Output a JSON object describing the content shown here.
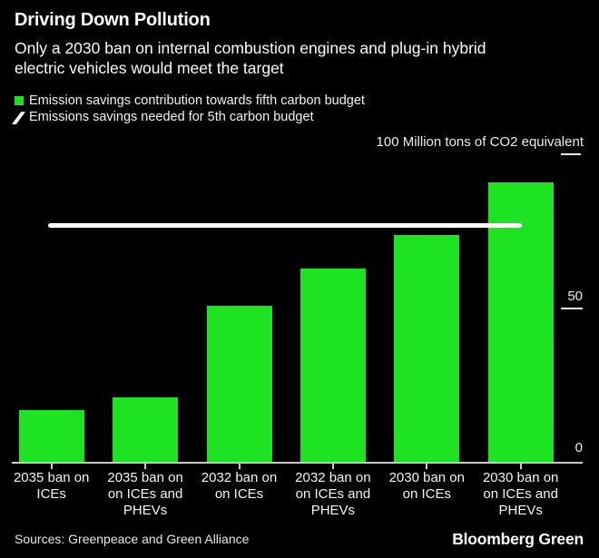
{
  "header": {
    "title": "Driving Down Pollution",
    "subtitle_line1": "Only a 2030 ban on internal combustion engines and plug-in hybrid",
    "subtitle_line2": "electric vehicles would meet the target"
  },
  "legend": {
    "bar_series_label": "Emission savings contribution towards fifth carbon budget",
    "target_line_label": "Emissions savings needed for 5th carbon budget"
  },
  "axis": {
    "unit_label": "100 Million tons of CO2 equivalent",
    "tick_50": "50",
    "tick_0": "0"
  },
  "footer": {
    "sources": "Sources: Greenpeace and Green Alliance",
    "brand": "Bloomberg Green"
  },
  "colors": {
    "background": "#000000",
    "bar_green": "#1de322",
    "target_line": "#ffffff",
    "axis_text": "#ececec",
    "baseline_gray": "#c9c9c9"
  },
  "chart_data": {
    "type": "bar",
    "title": "Driving Down Pollution",
    "subtitle": "Only a 2030 ban on internal combustion engines and plug-in hybrid electric vehicles would meet the target",
    "ylabel": "100 Million tons of CO2 equivalent",
    "xlabel": "",
    "categories": [
      "2035 ban on ICEs",
      "2035 ban on on ICEs and PHEVs",
      "2032 ban on on ICEs",
      "2032 ban on on ICEs and PHEVs",
      "2030 ban on on ICEs",
      "2030 ban on on ICEs and PHEVs"
    ],
    "category_lines": [
      [
        "2035 ban on",
        "ICEs"
      ],
      [
        "2035 ban on",
        "on ICEs and",
        "PHEVs"
      ],
      [
        "2032 ban on",
        "on ICEs"
      ],
      [
        "2032 ban on",
        "on ICEs and",
        "PHEVs"
      ],
      [
        "2030 ban on",
        "on ICEs"
      ],
      [
        "2030 ban on",
        "on ICEs and",
        "PHEVs"
      ]
    ],
    "series": [
      {
        "name": "Emission savings contribution towards fifth carbon budget",
        "values": [
          17,
          21,
          51,
          63,
          74,
          91
        ]
      }
    ],
    "target_line": {
      "name": "Emissions savings needed for 5th carbon budget",
      "value": 77
    },
    "unit": "Million tons of CO2 equivalent",
    "axis_ticks": [
      0,
      50,
      100
    ],
    "ylim": [
      0,
      100
    ],
    "grid": false,
    "legend_position": "top-left",
    "sources": "Sources: Greenpeace and Green Alliance"
  }
}
